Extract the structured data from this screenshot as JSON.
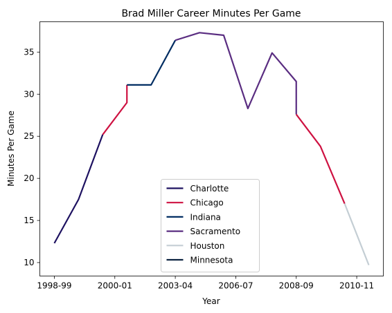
{
  "chart_data": {
    "type": "line",
    "title": "Brad Miller  Career Minutes Per Game",
    "xlabel": "Year",
    "ylabel": "Minutes Per Game",
    "xlim": [
      -0.6,
      13.6
    ],
    "ylim": [
      8.4,
      38.6
    ],
    "x_ticks": [
      {
        "x": 0,
        "label": "1998-99"
      },
      {
        "x": 2.5,
        "label": "2000-01"
      },
      {
        "x": 5,
        "label": "2003-04"
      },
      {
        "x": 7.5,
        "label": "2006-07"
      },
      {
        "x": 10,
        "label": "2008-09"
      },
      {
        "x": 12.5,
        "label": "2010-11"
      }
    ],
    "y_ticks": [
      10,
      15,
      20,
      25,
      30,
      35
    ],
    "grid": false,
    "legend_position": "lower-center",
    "series": [
      {
        "name": "Charlotte",
        "color": "#1D1160",
        "points": [
          [
            0,
            12.3
          ],
          [
            1,
            17.5
          ],
          [
            2,
            25.2
          ]
        ]
      },
      {
        "name": "Chicago",
        "color": "#CE1141",
        "points": [
          [
            2,
            25.2
          ],
          [
            3,
            29.0
          ],
          [
            3,
            31.1
          ]
        ]
      },
      {
        "name": "Indiana",
        "color": "#002D62",
        "points": [
          [
            3,
            31.1
          ],
          [
            4,
            31.1
          ],
          [
            5,
            36.4
          ]
        ]
      },
      {
        "name": "Sacramento",
        "color": "#5A2D81",
        "points": [
          [
            5,
            36.4
          ],
          [
            6,
            37.3
          ],
          [
            7,
            37.0
          ],
          [
            8,
            28.3
          ],
          [
            9,
            34.9
          ],
          [
            10,
            31.5
          ],
          [
            10,
            27.6
          ]
        ]
      },
      {
        "name": "Chicago",
        "color": "#CE1141",
        "points": [
          [
            10,
            27.6
          ],
          [
            11,
            23.8
          ],
          [
            12,
            17.0
          ]
        ]
      },
      {
        "name": "Houston",
        "color": "#C4CED4",
        "points": [
          [
            12,
            17.0
          ],
          [
            13,
            9.7
          ]
        ]
      },
      {
        "name": "Minnesota",
        "color": "#0C2340",
        "points": []
      }
    ],
    "legend": [
      {
        "label": "Charlotte",
        "color": "#1D1160"
      },
      {
        "label": "Chicago",
        "color": "#CE1141"
      },
      {
        "label": "Indiana",
        "color": "#002D62"
      },
      {
        "label": "Sacramento",
        "color": "#5A2D81"
      },
      {
        "label": "Houston",
        "color": "#C4CED4"
      },
      {
        "label": "Minnesota",
        "color": "#0C2340"
      }
    ]
  }
}
